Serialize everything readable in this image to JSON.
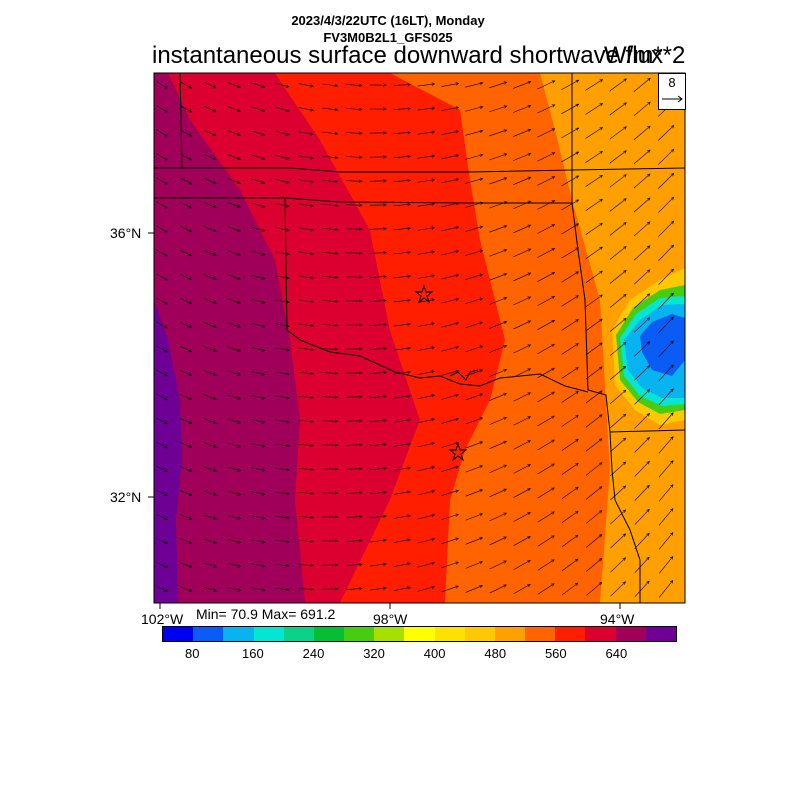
{
  "header": {
    "datetime": "2023/4/3/22UTC (16LT), Monday",
    "model": "FV3M0B2L1_GFS025",
    "variable": "instantaneous surface downward shortwave flux",
    "units": "W/m**2"
  },
  "axes": {
    "lat_labels": [
      "36°N",
      "32°N"
    ],
    "lon_labels": [
      "102°W",
      "98°W",
      "94°W"
    ]
  },
  "stats": {
    "label": "Min= 70.9 Max= 691.2",
    "min": 70.9,
    "max": 691.2
  },
  "vector_reference": {
    "label": "8",
    "value": 8,
    "icon": "arrow-right-icon"
  },
  "colorbar": {
    "colors": [
      "#0000f0",
      "#0a5cf5",
      "#08b4f0",
      "#04e6d2",
      "#0ad286",
      "#06be34",
      "#46cc12",
      "#a6e000",
      "#ffff00",
      "#ffe100",
      "#ffc800",
      "#ffa000",
      "#ff6400",
      "#ff1e00",
      "#dc0030",
      "#a0005a",
      "#6e0096"
    ],
    "tick_labels": [
      "80",
      "160",
      "240",
      "320",
      "400",
      "480",
      "560",
      "640"
    ]
  },
  "legend_colors": {
    "range_420_480": "#ffa000",
    "range_480_520": "#ff6400",
    "range_520_560": "#ff1e00",
    "range_560_600": "#dc0030",
    "range_600_640": "#a0005a",
    "range_640_plus": "#6e0096"
  }
}
